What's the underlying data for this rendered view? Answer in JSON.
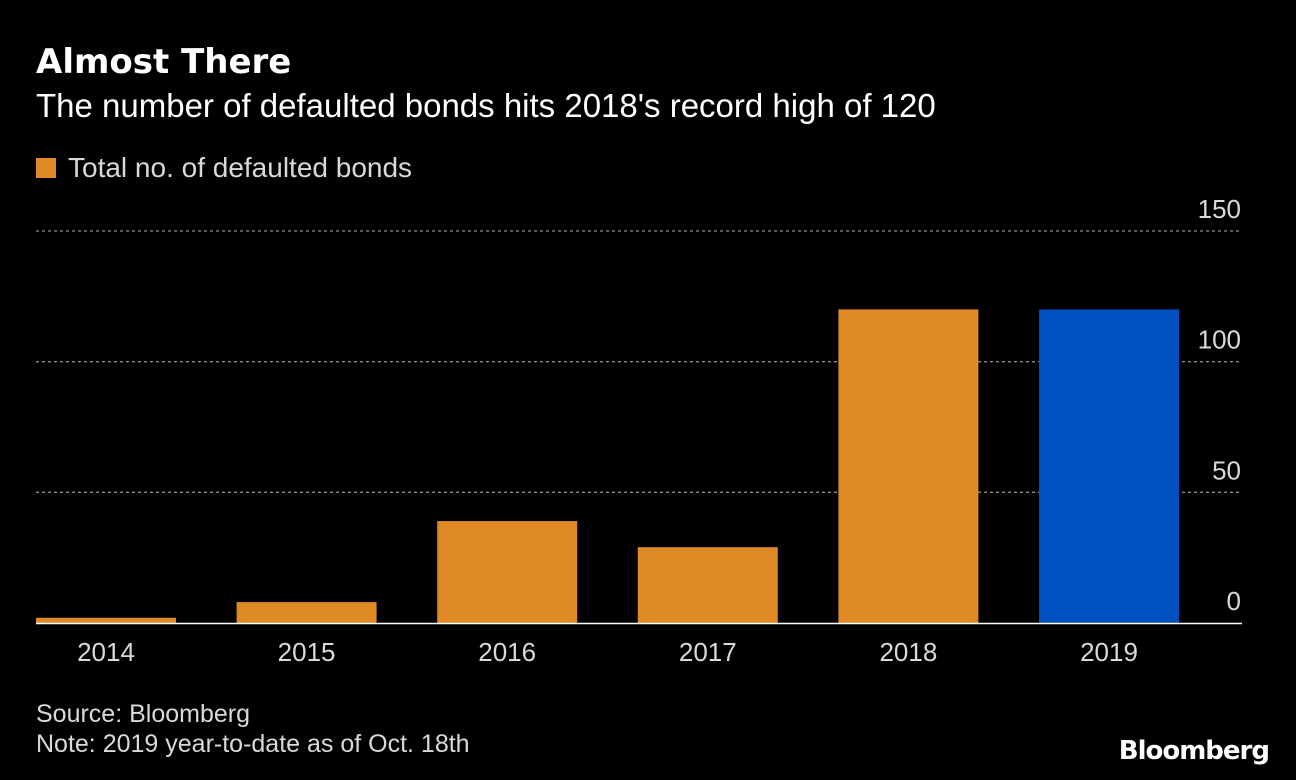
{
  "header": {
    "title": "Almost There",
    "subtitle": "The number of defaulted bonds hits 2018's record high of 120"
  },
  "legend": {
    "label": "Total no. of defaulted bonds"
  },
  "footer": {
    "source": "Source: Bloomberg",
    "note": "Note: 2019 year-to-date as of Oct. 18th"
  },
  "brand": "Bloomberg",
  "colors": {
    "background": "#000000",
    "bar": "#e08a27",
    "highlight": "#0050c0",
    "grid": "#8c8c8c",
    "axis": "#ffffff",
    "text": "#d9d9d9"
  },
  "chart_data": {
    "type": "bar",
    "categories": [
      "2014",
      "2015",
      "2016",
      "2017",
      "2018",
      "2019"
    ],
    "series": [
      {
        "name": "Total no. of defaulted bonds",
        "values": [
          2,
          8,
          39,
          29,
          120,
          120
        ]
      }
    ],
    "highlight_category": "2019",
    "ylim": [
      0,
      150
    ],
    "yticks": [
      0,
      50,
      100,
      150
    ],
    "y_axis_position": "right",
    "grid": true,
    "legend_position": "top-left",
    "title": "Almost There",
    "subtitle": "The number of defaulted bonds hits 2018's record high of 120"
  }
}
